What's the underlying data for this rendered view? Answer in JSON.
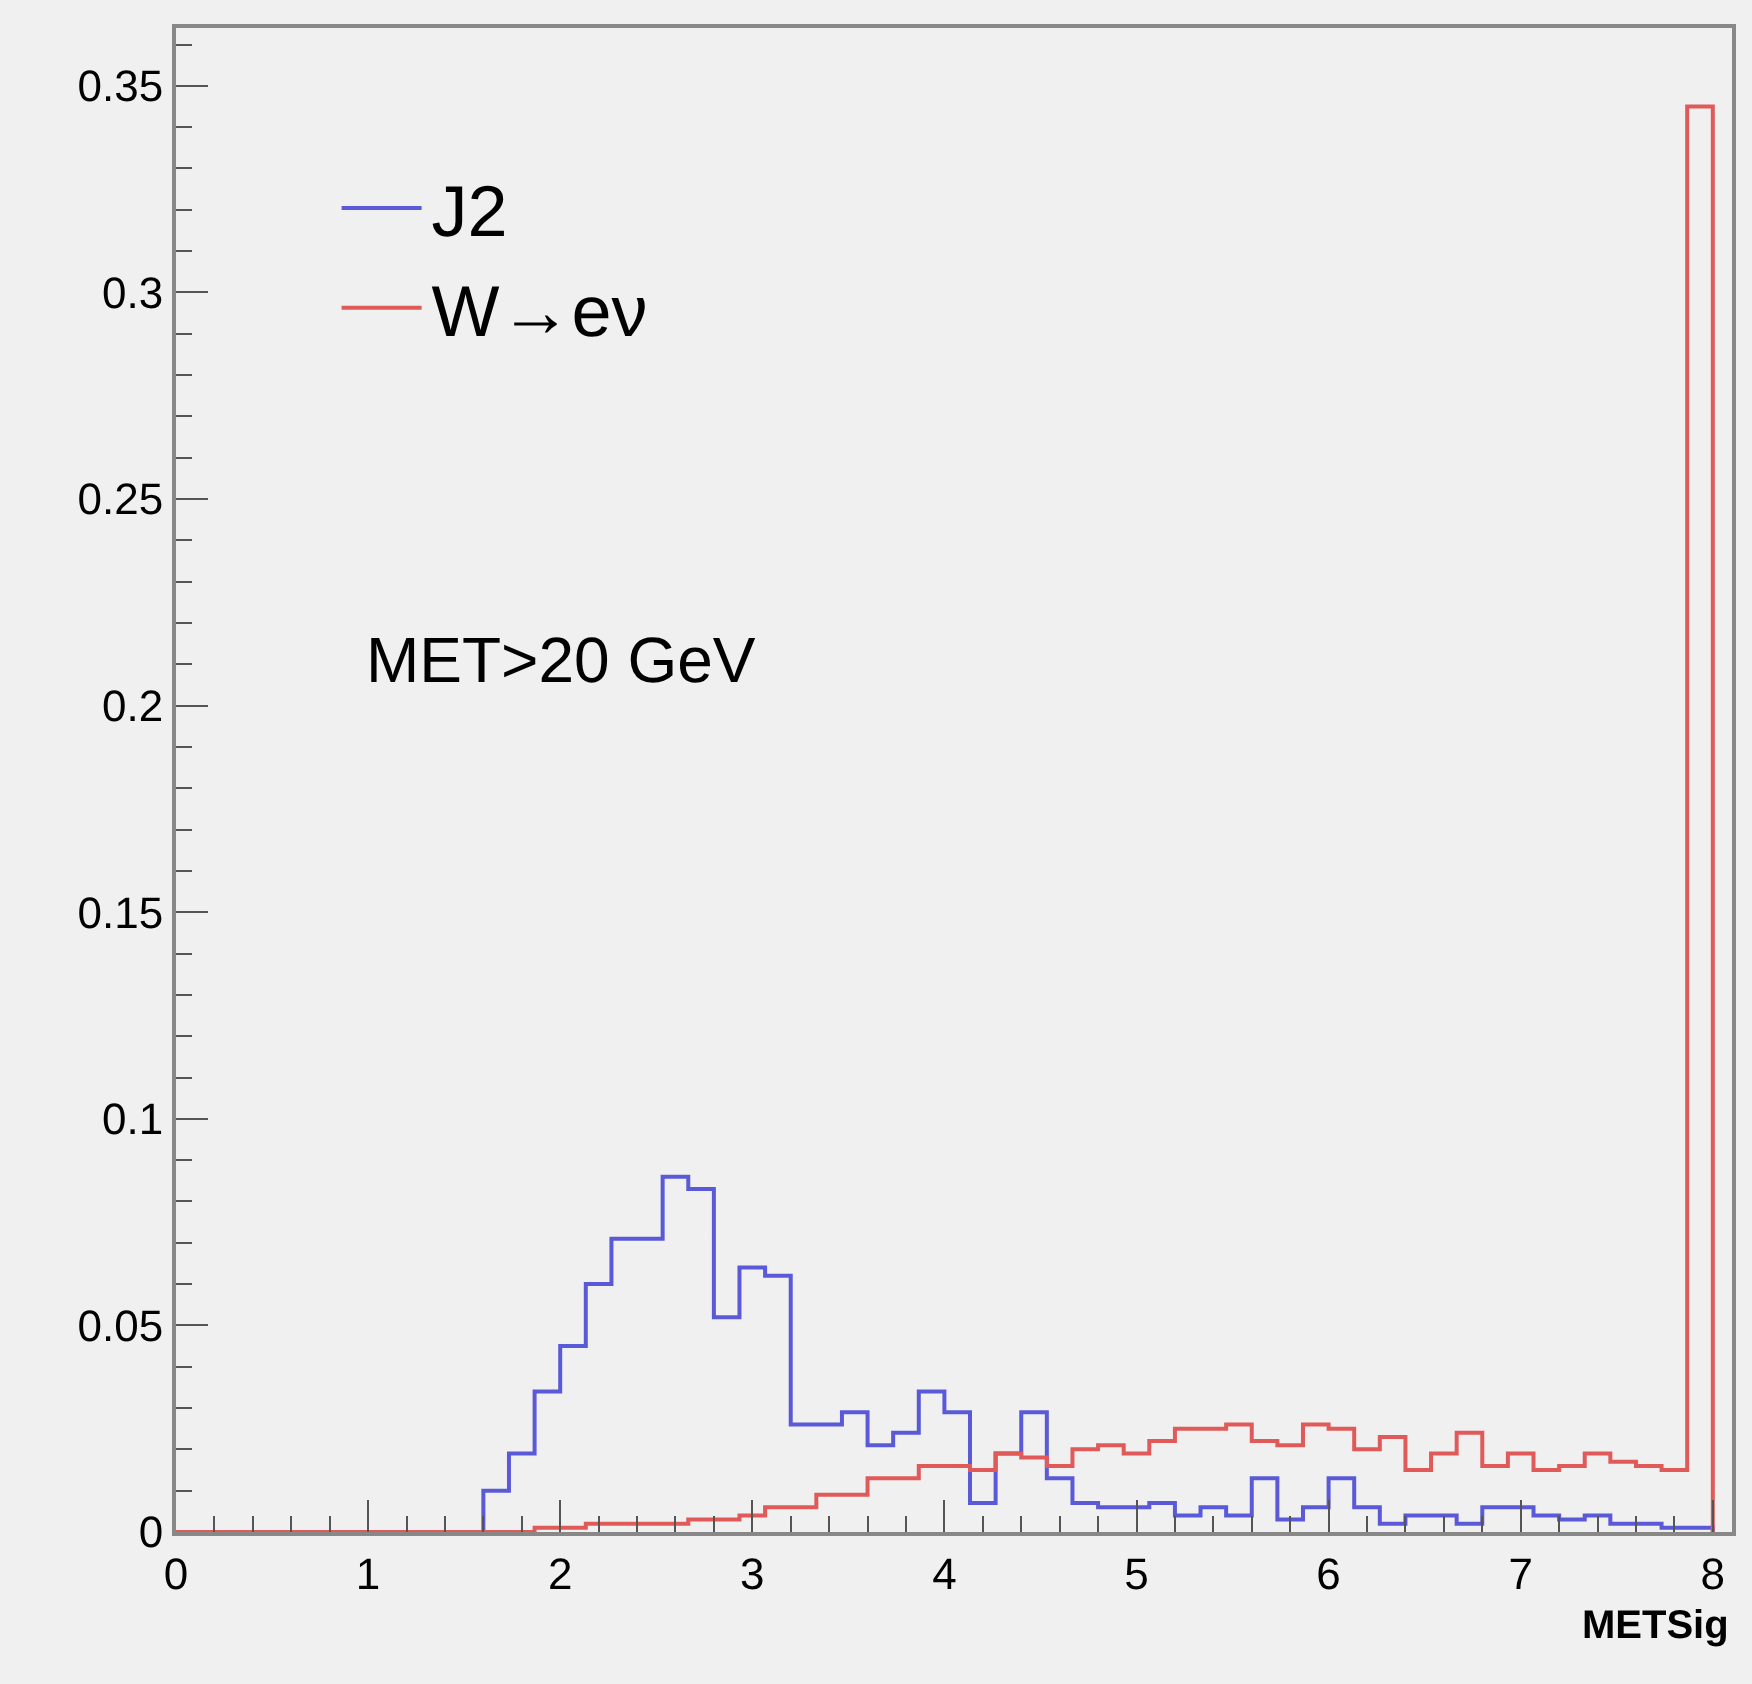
{
  "chart_data": {
    "type": "histogram",
    "xlabel": "METSig",
    "xlim": [
      0,
      8.1
    ],
    "ylim": [
      0,
      0.364
    ],
    "xticks": [
      0,
      1,
      2,
      3,
      4,
      5,
      6,
      7,
      8
    ],
    "yticks": [
      0,
      0.05,
      0.1,
      0.15,
      0.2,
      0.25,
      0.3,
      0.35
    ],
    "bins": [
      0,
      0.1333,
      0.2667,
      0.4,
      0.5333,
      0.6667,
      0.8,
      0.9333,
      1.0667,
      1.2,
      1.3333,
      1.4667,
      1.6,
      1.7333,
      1.8667,
      2.0,
      2.1333,
      2.2667,
      2.4,
      2.5333,
      2.6667,
      2.8,
      2.9333,
      3.0667,
      3.2,
      3.3333,
      3.4667,
      3.6,
      3.7333,
      3.8667,
      4.0,
      4.1333,
      4.2667,
      4.4,
      4.5333,
      4.6667,
      4.8,
      4.9333,
      5.0667,
      5.2,
      5.3333,
      5.4667,
      5.6,
      5.7333,
      5.8667,
      6.0,
      6.1333,
      6.2667,
      6.4,
      6.5333,
      6.6667,
      6.8,
      6.9333,
      7.0667,
      7.2,
      7.3333,
      7.4667,
      7.6,
      7.7333,
      7.8667,
      8.0
    ],
    "series": [
      {
        "name": "J2",
        "color": "#5a5ad8",
        "values": [
          0,
          0,
          0,
          0,
          0,
          0,
          0,
          0,
          0,
          0,
          0,
          0,
          0.01,
          0.019,
          0.034,
          0.045,
          0.06,
          0.071,
          0.071,
          0.086,
          0.083,
          0.052,
          0.064,
          0.062,
          0.026,
          0.026,
          0.029,
          0.021,
          0.024,
          0.034,
          0.029,
          0.007,
          0.019,
          0.029,
          0.013,
          0.007,
          0.006,
          0.006,
          0.007,
          0.004,
          0.006,
          0.004,
          0.013,
          0.003,
          0.006,
          0.013,
          0.006,
          0.002,
          0.004,
          0.004,
          0.002,
          0.006,
          0.006,
          0.004,
          0.003,
          0.004,
          0.002,
          0.002,
          0.001,
          0.001
        ]
      },
      {
        "name": "W→eν",
        "color": "#e05a5a",
        "values": [
          0,
          0,
          0,
          0,
          0,
          0,
          0,
          0,
          0,
          0,
          0,
          0,
          0,
          0,
          0.001,
          0.001,
          0.002,
          0.002,
          0.002,
          0.002,
          0.003,
          0.003,
          0.004,
          0.006,
          0.006,
          0.009,
          0.009,
          0.013,
          0.013,
          0.016,
          0.016,
          0.015,
          0.019,
          0.018,
          0.016,
          0.02,
          0.021,
          0.019,
          0.022,
          0.025,
          0.025,
          0.026,
          0.022,
          0.021,
          0.026,
          0.025,
          0.02,
          0.023,
          0.015,
          0.019,
          0.024,
          0.016,
          0.019,
          0.015,
          0.016,
          0.019,
          0.017,
          0.016,
          0.015,
          0.345
        ]
      }
    ],
    "annotations": [
      "MET>20 GeV"
    ],
    "legend": "top left",
    "grid": false
  }
}
